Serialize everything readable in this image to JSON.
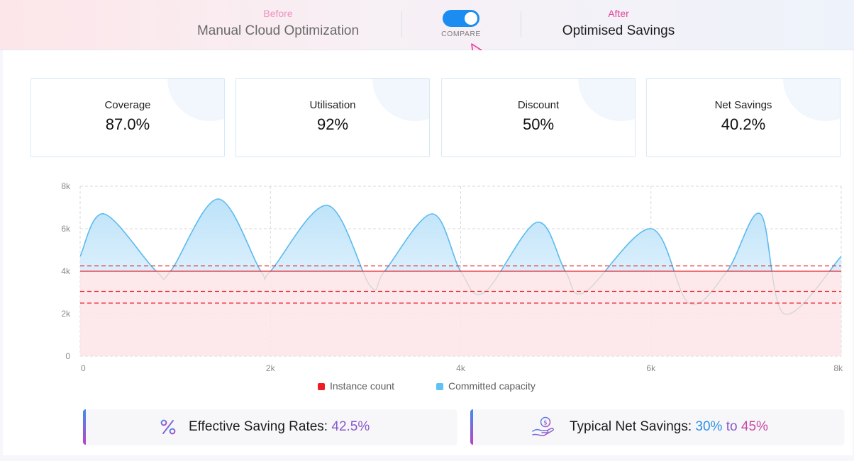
{
  "header": {
    "before_tag": "Before",
    "before_name": "Manual Cloud Optimization",
    "after_tag": "After",
    "after_name": "Optimised Savings",
    "toggle_label": "COMPARE",
    "toggle_on": true,
    "toggle_color": "#1b8cf0"
  },
  "stats": [
    {
      "label": "Coverage",
      "value": "87.0%"
    },
    {
      "label": "Utilisation",
      "value": "92%"
    },
    {
      "label": "Discount",
      "value": "50%"
    },
    {
      "label": "Net Savings",
      "value": "40.2%"
    }
  ],
  "chart_data": {
    "type": "area",
    "xlabel": "",
    "ylabel": "",
    "xlim": [
      0,
      8000
    ],
    "ylim": [
      0,
      8000
    ],
    "x_ticks": [
      "0",
      "2k",
      "4k",
      "6k",
      "8k"
    ],
    "y_ticks": [
      "8k",
      "6k",
      "4k",
      "2k",
      "0"
    ],
    "grid": true,
    "legend_position": "bottom",
    "series": [
      {
        "name": "Committed capacity",
        "color": "#5bbcf0",
        "x": [
          0,
          250,
          800,
          950,
          1450,
          1900,
          2000,
          2600,
          3050,
          3200,
          3700,
          4000,
          4250,
          4800,
          5100,
          5300,
          6000,
          6400,
          6800,
          7150,
          7400,
          8000
        ],
        "y": [
          4700,
          6700,
          4000,
          4000,
          7400,
          4000,
          4000,
          7100,
          3300,
          4000,
          6700,
          4000,
          3000,
          6300,
          4000,
          3000,
          6000,
          2500,
          4000,
          6700,
          2000,
          4700
        ]
      },
      {
        "name": "Instance count",
        "color": "#e8262f",
        "x": [
          0,
          8000
        ],
        "y": [
          4000,
          4000
        ]
      }
    ],
    "reference_lines": [
      {
        "y": 4250,
        "style": "dashed",
        "color": "#e8262f"
      },
      {
        "y": 3050,
        "style": "dashed",
        "color": "#e8262f"
      },
      {
        "y": 2500,
        "style": "dashed",
        "color": "#e8262f"
      }
    ]
  },
  "legend": [
    {
      "label": "Instance count",
      "color": "#ef1c24"
    },
    {
      "label": "Committed capacity",
      "color": "#5dc2f4"
    }
  ],
  "savings": {
    "effective_label": "Effective Saving Rates:",
    "effective_value": "42.5%",
    "typical_label": "Typical Net Savings:",
    "typical_low": "30%",
    "typical_to": "to",
    "typical_high": "45%"
  },
  "icons": {
    "percent": "percent-icon",
    "savings": "hand-coin-icon"
  }
}
